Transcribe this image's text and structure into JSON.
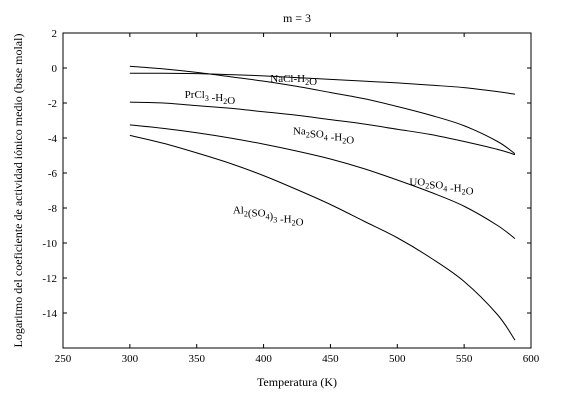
{
  "chart_data": {
    "type": "line",
    "title": "m = 3",
    "xlabel": "Temperatura (K)",
    "ylabel": "Logaritmo del coeficiente de actividad iónico medio (base molal)",
    "xlim": [
      250,
      600
    ],
    "ylim": [
      -16,
      2
    ],
    "xticks": [
      250,
      300,
      350,
      400,
      450,
      500,
      550,
      600
    ],
    "yticks": [
      2,
      0,
      -2,
      -4,
      -6,
      -8,
      -10,
      -12,
      -14
    ],
    "grid": false,
    "series": [
      {
        "name": "NaCl-H2O",
        "label_parts": [
          [
            "NaCl-H",
            ""
          ],
          [
            "2",
            "sub"
          ],
          [
            "O",
            ""
          ]
        ],
        "label_anchor": [
          405,
          -0.8
        ],
        "x": [
          300,
          325,
          350,
          375,
          400,
          425,
          450,
          475,
          500,
          525,
          550,
          575,
          588
        ],
        "y": [
          -0.3,
          -0.3,
          -0.32,
          -0.38,
          -0.45,
          -0.55,
          -0.65,
          -0.75,
          -0.85,
          -0.98,
          -1.12,
          -1.35,
          -1.5
        ]
      },
      {
        "name": "PrCl3 -H2O",
        "label_parts": [
          [
            "PrCl",
            ""
          ],
          [
            "3",
            "sub"
          ],
          [
            " -H",
            ""
          ],
          [
            "2",
            "sub"
          ],
          [
            "O",
            ""
          ]
        ],
        "label_anchor": [
          341,
          -1.7
        ],
        "x": [
          300,
          325,
          350,
          375,
          400,
          425,
          450,
          475,
          500,
          525,
          550,
          575,
          588
        ],
        "y": [
          0.1,
          -0.05,
          -0.25,
          -0.5,
          -0.75,
          -1.05,
          -1.4,
          -1.75,
          -2.2,
          -2.7,
          -3.3,
          -4.2,
          -4.9
        ]
      },
      {
        "name": "Na2SO4 -H2O",
        "label_parts": [
          [
            "Na",
            ""
          ],
          [
            "2",
            "sub"
          ],
          [
            "SO",
            ""
          ],
          [
            "4",
            "sub"
          ],
          [
            "  -H",
            ""
          ],
          [
            "2",
            "sub"
          ],
          [
            "O",
            ""
          ]
        ],
        "label_anchor": [
          422,
          -3.8
        ],
        "x": [
          300,
          325,
          350,
          375,
          400,
          425,
          450,
          475,
          500,
          525,
          550,
          575,
          588
        ],
        "y": [
          -1.95,
          -2.0,
          -2.15,
          -2.3,
          -2.5,
          -2.7,
          -2.95,
          -3.2,
          -3.5,
          -3.8,
          -4.2,
          -4.65,
          -4.95
        ]
      },
      {
        "name": "UO2SO4 -H2O",
        "label_parts": [
          [
            "UO",
            ""
          ],
          [
            "2",
            "sub"
          ],
          [
            "SO",
            ""
          ],
          [
            "4",
            "sub"
          ],
          [
            " -H",
            ""
          ],
          [
            "2",
            "sub"
          ],
          [
            "O",
            ""
          ]
        ],
        "label_anchor": [
          509,
          -6.7
        ],
        "x": [
          300,
          325,
          350,
          375,
          400,
          425,
          450,
          475,
          500,
          525,
          550,
          575,
          588
        ],
        "y": [
          -3.25,
          -3.45,
          -3.7,
          -4.0,
          -4.35,
          -4.75,
          -5.2,
          -5.75,
          -6.4,
          -7.1,
          -7.9,
          -9.0,
          -9.75
        ]
      },
      {
        "name": "Al2(SO4)3 -H2O",
        "label_parts": [
          [
            "Al",
            ""
          ],
          [
            "2",
            "sub"
          ],
          [
            "(SO",
            ""
          ],
          [
            "4",
            "sub"
          ],
          [
            ")",
            ""
          ],
          [
            "3",
            "sub"
          ],
          [
            "  -H",
            ""
          ],
          [
            "2",
            "sub"
          ],
          [
            "O",
            ""
          ]
        ],
        "label_anchor": [
          377,
          -8.3
        ],
        "x": [
          300,
          325,
          350,
          375,
          400,
          425,
          450,
          475,
          500,
          525,
          550,
          575,
          588
        ],
        "y": [
          -3.85,
          -4.3,
          -4.85,
          -5.45,
          -6.15,
          -6.95,
          -7.8,
          -8.75,
          -9.7,
          -10.85,
          -12.2,
          -14.1,
          -15.55
        ]
      }
    ]
  }
}
